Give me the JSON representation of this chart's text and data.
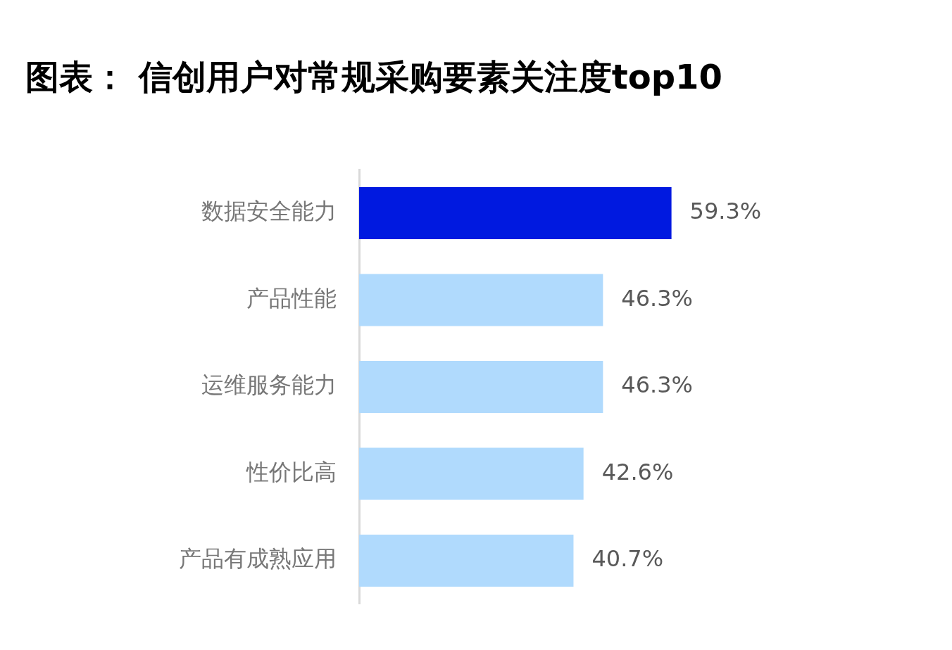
{
  "chart_data": {
    "type": "bar",
    "orientation": "horizontal",
    "title": "图表： 信创用户对常规采购要素关注度top10",
    "categories": [
      "数据安全能力",
      "产品性能",
      "运维服务能力",
      "性价比高",
      "产品有成熟应用"
    ],
    "values": [
      59.3,
      46.3,
      46.3,
      42.6,
      40.7
    ],
    "colors": [
      "#0019e0",
      "#b0dafd",
      "#b0dafd",
      "#b0dafd",
      "#b0dafd"
    ],
    "value_labels": [
      "59.3%",
      "46.3%",
      "46.3%",
      "42.6%",
      "40.7%"
    ],
    "legend": false
  }
}
